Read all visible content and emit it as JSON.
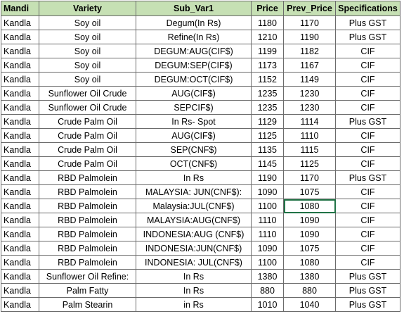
{
  "table": {
    "columns": [
      "Mandi",
      "Variety",
      "Sub_Var1",
      "Price",
      "Prev_Price",
      "Specifications"
    ],
    "rows": [
      [
        "Kandla",
        "Soy oil",
        "Degum(In Rs)",
        1180,
        1170,
        "Plus GST"
      ],
      [
        "Kandla",
        "Soy oil",
        "Refine(In Rs)",
        1210,
        1190,
        "Plus GST"
      ],
      [
        "Kandla",
        "Soy oil",
        "DEGUM:AUG(CIF$)",
        1199,
        1182,
        "CIF"
      ],
      [
        "Kandla",
        "Soy oil",
        "DEGUM:SEP(CIF$)",
        1173,
        1167,
        "CIF"
      ],
      [
        "Kandla",
        "Soy oil",
        "DEGUM:OCT(CIF$)",
        1152,
        1149,
        "CIF"
      ],
      [
        "Kandla",
        "Sunflower Oil Crude",
        "AUG(CIF$)",
        1235,
        1230,
        "CIF"
      ],
      [
        "Kandla",
        "Sunflower Oil Crude",
        "SEPCIF$)",
        1235,
        1230,
        "CIF"
      ],
      [
        "Kandla",
        "Crude Palm Oil",
        "In Rs- Spot",
        1129,
        1114,
        "Plus GST"
      ],
      [
        "Kandla",
        "Crude Palm Oil",
        "AUG(CIF$)",
        1125,
        1110,
        "CIF"
      ],
      [
        "Kandla",
        "Crude Palm Oil",
        "SEP(CNF$)",
        1135,
        1115,
        "CIF"
      ],
      [
        "Kandla",
        "Crude Palm Oil",
        "OCT(CNF$)",
        1145,
        1125,
        "CIF"
      ],
      [
        "Kandla",
        "RBD Palmolein",
        "In Rs",
        1190,
        1170,
        "Plus GST"
      ],
      [
        "Kandla",
        "RBD Palmolein",
        "MALAYSIA: JUN(CNF$):",
        1090,
        1075,
        "CIF"
      ],
      [
        "Kandla",
        "RBD Palmolein",
        "Malaysia:JUL(CNF$)",
        1100,
        1080,
        "CIF"
      ],
      [
        "Kandla",
        "RBD Palmolein",
        "MALAYSIA:AUG(CNF$)",
        1110,
        1090,
        "CIF"
      ],
      [
        "Kandla",
        "RBD Palmolein",
        "INDONESIA:AUG (CNF$)",
        1110,
        1090,
        "CIF"
      ],
      [
        "Kandla",
        "RBD Palmolein",
        "INDONESIA:JUN(CNF$)",
        1090,
        1075,
        "CIF"
      ],
      [
        "Kandla",
        "RBD Palmolein",
        "INDONESIA: JUL(CNF$)",
        1100,
        1080,
        "CIF"
      ],
      [
        "Kandla",
        "Sunflower Oil Refine:",
        "In Rs",
        1380,
        1380,
        "Plus GST"
      ],
      [
        "Kandla",
        "Palm Fatty",
        "In Rs",
        880,
        880,
        "Plus GST"
      ],
      [
        "Kandla",
        "Palm Stearin",
        "in Rs",
        1010,
        1040,
        "Plus GST"
      ]
    ]
  }
}
